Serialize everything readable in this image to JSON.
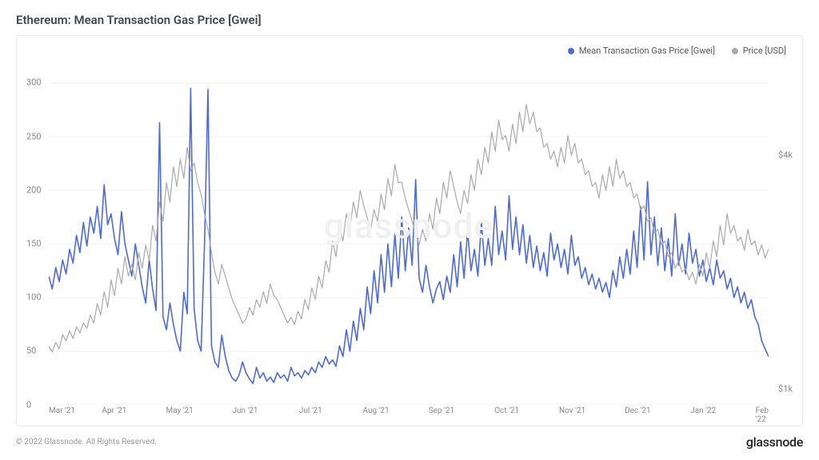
{
  "title": "Ethereum: Mean Transaction Gas Price [Gwei]",
  "watermark": "glassnode",
  "copyright": "© 2022 Glassnode. All Rights Reserved.",
  "brand": "glassnode",
  "chart": {
    "type": "line",
    "background_color": "#ffffff",
    "border_color": "#e8e8e8",
    "grid_color": "#f2f2f2",
    "legend": {
      "position": "top-right",
      "items": [
        {
          "label": "Mean Transaction Gas Price [Gwei]",
          "color": "#4d6bd6"
        },
        {
          "label": "Price [USD]",
          "color": "#aaaaaa"
        }
      ]
    },
    "x_axis": {
      "ticks": [
        "Mar '21",
        "Apr '21",
        "May '21",
        "Jun '21",
        "Jul '21",
        "Aug '21",
        "Sep '21",
        "Oct '21",
        "Nov '21",
        "Dec '21",
        "Jan '22",
        "Feb '22"
      ],
      "label_fontsize": 10,
      "label_color": "#888888"
    },
    "y_axis_left": {
      "min": 0,
      "max": 320,
      "ticks": [
        0,
        50,
        100,
        150,
        200,
        250,
        300
      ],
      "label_fontsize": 11,
      "label_color": "#888888"
    },
    "y_axis_right": {
      "ticks": [
        {
          "value": 1000,
          "label": "$1k"
        },
        {
          "value": 4000,
          "label": "$4k"
        }
      ],
      "min": 800,
      "max": 5200,
      "label_fontsize": 11,
      "label_color": "#888888"
    },
    "series": [
      {
        "name": "gas_gwei",
        "axis": "left",
        "color": "#4d6bd6",
        "line_width": 1.6,
        "data": [
          120,
          108,
          128,
          115,
          135,
          122,
          145,
          132,
          158,
          142,
          170,
          148,
          175,
          160,
          185,
          155,
          205,
          168,
          178,
          155,
          140,
          180,
          150,
          135,
          120,
          150,
          130,
          110,
          95,
          135,
          108,
          88,
          263,
          82,
          70,
          95,
          75,
          60,
          50,
          105,
          85,
          295,
          90,
          60,
          50,
          150,
          294,
          55,
          40,
          35,
          65,
          45,
          32,
          25,
          22,
          28,
          40,
          30,
          24,
          20,
          35,
          25,
          30,
          22,
          26,
          21,
          30,
          25,
          28,
          22,
          35,
          27,
          30,
          25,
          32,
          28,
          35,
          30,
          40,
          35,
          45,
          38,
          42,
          36,
          55,
          45,
          70,
          50,
          78,
          60,
          90,
          70,
          110,
          85,
          125,
          95,
          140,
          105,
          150,
          110,
          160,
          118,
          175,
          125,
          165,
          130,
          210,
          118,
          105,
          130,
          110,
          95,
          108,
          115,
          98,
          120,
          105,
          140,
          110,
          152,
          118,
          162,
          125,
          145,
          120,
          170,
          130,
          155,
          130,
          185,
          140,
          162,
          135,
          195,
          145,
          175,
          140,
          168,
          132,
          158,
          128,
          148,
          125,
          142,
          120,
          160,
          135,
          150,
          128,
          145,
          122,
          158,
          130,
          138,
          118,
          128,
          112,
          122,
          108,
          118,
          105,
          114,
          100,
          125,
          110,
          138,
          118,
          145,
          122,
          162,
          128,
          185,
          135,
          208,
          140,
          175,
          130,
          165,
          125,
          155,
          120,
          178,
          130,
          150,
          122,
          160,
          132,
          145,
          120,
          135,
          115,
          128,
          112,
          135,
          118,
          125,
          108,
          118,
          100,
          110,
          95,
          105,
          90,
          98,
          82,
          75,
          60,
          52,
          45
        ]
      },
      {
        "name": "price_usd",
        "axis": "right",
        "color": "#aaaaaa",
        "line_width": 1.2,
        "data": [
          1550,
          1480,
          1600,
          1520,
          1700,
          1620,
          1750,
          1650,
          1800,
          1720,
          1850,
          1780,
          1950,
          1850,
          2100,
          1950,
          2250,
          2050,
          2400,
          2200,
          2550,
          2350,
          2700,
          2450,
          2600,
          2400,
          2750,
          2550,
          2850,
          2650,
          3100,
          2900,
          3400,
          3150,
          3650,
          3400,
          3850,
          3600,
          3950,
          3700,
          4100,
          3800,
          3900,
          3650,
          3500,
          3250,
          3050,
          2750,
          2500,
          2350,
          2600,
          2450,
          2300,
          2150,
          2050,
          1950,
          1850,
          1900,
          2050,
          1950,
          2150,
          2050,
          2250,
          2100,
          2350,
          2200,
          2150,
          2050,
          1950,
          1850,
          1920,
          1830,
          2000,
          1900,
          2150,
          2020,
          2300,
          2150,
          2450,
          2300,
          2650,
          2500,
          2900,
          2700,
          3100,
          2900,
          3250,
          3050,
          3400,
          3200,
          3550,
          3350,
          3200,
          3050,
          3300,
          3150,
          3500,
          3300,
          3700,
          3480,
          3880,
          3650,
          3650,
          3450,
          3300,
          3150,
          3000,
          2850,
          3050,
          2900,
          3250,
          3050,
          3450,
          3250,
          3650,
          3450,
          3800,
          3600,
          3400,
          3250,
          3550,
          3380,
          3750,
          3550,
          3950,
          3750,
          4100,
          3900,
          4300,
          4050,
          4450,
          4200,
          4250,
          4050,
          4400,
          4150,
          4550,
          4300,
          4650,
          4400,
          4550,
          4300,
          4350,
          4100,
          4150,
          3950,
          4050,
          3850,
          4100,
          3900,
          4250,
          4000,
          4150,
          3900,
          3950,
          3750,
          3800,
          3600,
          3650,
          3450,
          3750,
          3550,
          3850,
          3600,
          3950,
          3700,
          3800,
          3600,
          3650,
          3450,
          3500,
          3300,
          3350,
          3150,
          3200,
          3000,
          3050,
          2850,
          2900,
          2700,
          2750,
          2550,
          2650,
          2500,
          2550,
          2400,
          2500,
          2350,
          2600,
          2450,
          2750,
          2550,
          2900,
          2700,
          3100,
          2850,
          3250,
          3000,
          3100,
          2900,
          2950,
          2780,
          3050,
          2850,
          2900,
          2720,
          2850,
          2680,
          2800
        ]
      }
    ]
  }
}
